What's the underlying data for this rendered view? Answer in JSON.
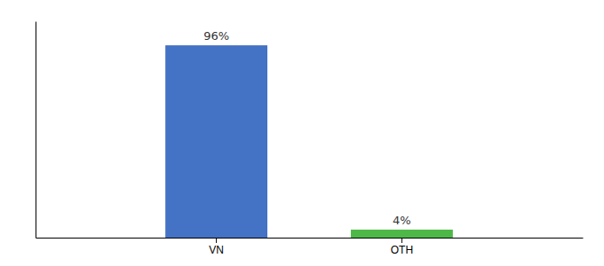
{
  "chart_data": {
    "type": "bar",
    "categories": [
      "VN",
      "OTH"
    ],
    "values": [
      96,
      4
    ],
    "value_labels": [
      "96%",
      "4%"
    ],
    "colors": [
      "#4472c4",
      "#4db848"
    ],
    "ylim": [
      0,
      108
    ],
    "data_labels": true,
    "tick_labels": "x",
    "grid": false
  }
}
